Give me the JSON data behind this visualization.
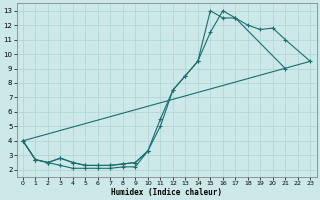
{
  "xlabel": "Humidex (Indice chaleur)",
  "background_color": "#cce8e8",
  "grid_color": "#add4d4",
  "line_color": "#1a6e6e",
  "xlim": [
    -0.5,
    23.5
  ],
  "ylim": [
    1.5,
    13.5
  ],
  "xticks": [
    0,
    1,
    2,
    3,
    4,
    5,
    6,
    7,
    8,
    9,
    10,
    11,
    12,
    13,
    14,
    15,
    16,
    17,
    18,
    19,
    20,
    21,
    22,
    23
  ],
  "yticks": [
    2,
    3,
    4,
    5,
    6,
    7,
    8,
    9,
    10,
    11,
    12,
    13
  ],
  "line1_x": [
    0,
    1,
    2,
    3,
    4,
    5,
    6,
    7,
    8,
    9,
    10,
    11,
    12,
    13,
    14,
    15,
    16,
    17,
    21
  ],
  "line1_y": [
    4.0,
    2.7,
    2.5,
    2.3,
    2.1,
    2.1,
    2.1,
    2.1,
    2.2,
    2.2,
    3.3,
    5.5,
    7.5,
    8.5,
    9.5,
    13.0,
    12.5,
    12.5,
    9.0
  ],
  "line2_x": [
    0,
    1,
    2,
    3,
    4,
    5,
    6,
    7,
    8,
    9,
    10,
    11,
    12,
    13,
    14,
    15,
    16,
    17,
    18,
    19,
    20,
    21,
    23
  ],
  "line2_y": [
    4.0,
    2.7,
    2.5,
    2.8,
    2.5,
    2.3,
    2.3,
    2.3,
    2.4,
    2.5,
    3.3,
    5.0,
    7.5,
    8.5,
    9.5,
    11.5,
    13.0,
    12.5,
    12.0,
    11.7,
    11.8,
    11.0,
    9.5
  ],
  "line3_x": [
    0,
    23
  ],
  "line3_y": [
    4.0,
    9.5
  ],
  "line4_x": [
    0,
    1,
    2,
    3,
    4,
    5,
    6,
    7,
    8,
    9,
    10
  ],
  "line4_y": [
    4.0,
    2.7,
    2.5,
    2.8,
    2.5,
    2.3,
    2.3,
    2.3,
    2.4,
    2.5,
    3.3
  ]
}
